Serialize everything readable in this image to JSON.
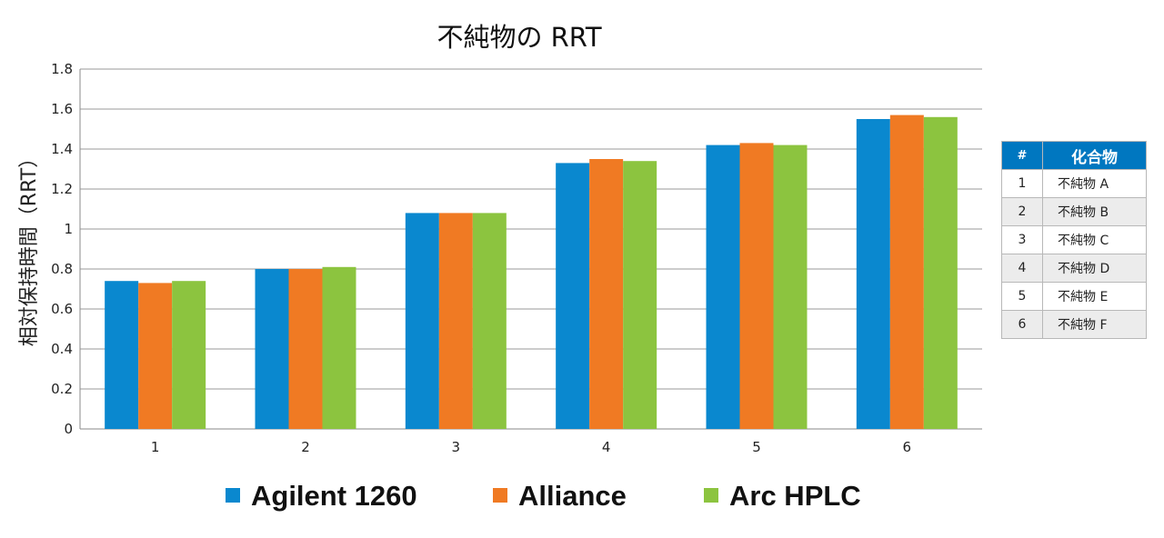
{
  "chart_data": {
    "type": "bar",
    "title": "不純物の RRT",
    "ylabel": "相対保持時間（RRT）",
    "xlabel": "",
    "categories": [
      "1",
      "2",
      "3",
      "4",
      "5",
      "6"
    ],
    "ylim": [
      0,
      1.8
    ],
    "yticks": [
      "0",
      "0.2",
      "0.4",
      "0.6",
      "0.8",
      "1",
      "1.2",
      "1.4",
      "1.6",
      "1.8"
    ],
    "grid": true,
    "legend_position": "bottom",
    "series": [
      {
        "name": "Agilent 1260",
        "color": "#0a88cf",
        "values": [
          0.74,
          0.8,
          1.08,
          1.33,
          1.42,
          1.55
        ]
      },
      {
        "name": "Alliance",
        "color": "#f07a23",
        "values": [
          0.73,
          0.8,
          1.08,
          1.35,
          1.43,
          1.57
        ]
      },
      {
        "name": "Arc HPLC",
        "color": "#8cc43f",
        "values": [
          0.74,
          0.81,
          1.08,
          1.34,
          1.42,
          1.56
        ]
      }
    ]
  },
  "compound_table": {
    "headers": {
      "number": "#",
      "compound": "化合物"
    },
    "rows": [
      {
        "number": "1",
        "compound": "不純物 A"
      },
      {
        "number": "2",
        "compound": "不純物 B"
      },
      {
        "number": "3",
        "compound": "不純物 C"
      },
      {
        "number": "4",
        "compound": "不純物 D"
      },
      {
        "number": "5",
        "compound": "不純物 E"
      },
      {
        "number": "6",
        "compound": "不純物 F"
      }
    ]
  }
}
